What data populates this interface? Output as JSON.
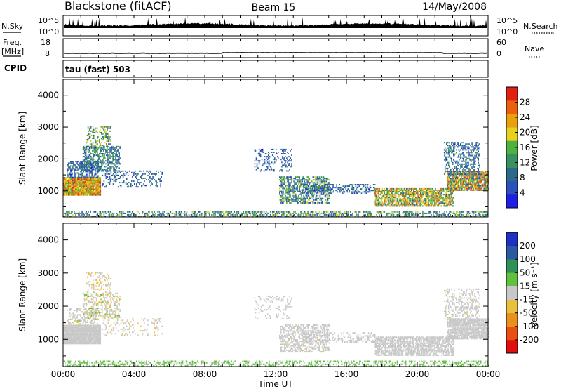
{
  "header": {
    "station": "Blackstone (fitACF)",
    "beam": "Beam 15",
    "date": "14/May/2008"
  },
  "top_panels": {
    "nsky_label": "N.Sky",
    "nsearch_label": "N.Search",
    "noise_ticks": [
      "10^5",
      "10^0"
    ],
    "freq_label_1": "Freq.",
    "freq_label_2": "[MHz]",
    "freq_ticks": [
      "18",
      "8"
    ],
    "nave_label": "Nave",
    "nave_ticks": [
      "60",
      "0"
    ],
    "cpid_label": "CPID",
    "cpid_text": "tau (fast) 503"
  },
  "colors": {
    "power_scale": [
      "#2020e0",
      "#2a52b8",
      "#2c6a88",
      "#3a9060",
      "#50b040",
      "#e8d020",
      "#e8a010",
      "#e86010",
      "#e02010"
    ],
    "velocity_scale": [
      "#e01010",
      "#e85010",
      "#e89020",
      "#e8c040",
      "#c8c8c8",
      "#60c040",
      "#30905a",
      "#2a5aa0",
      "#2030c0"
    ]
  },
  "chart_data": [
    {
      "type": "heatmap",
      "title": "",
      "ylabel": "Slant Range [km]",
      "x_ticks": [
        "00:00",
        "04:00",
        "08:00",
        "12:00",
        "16:00",
        "20:00",
        "00:00"
      ],
      "y_ticks": [
        1000,
        2000,
        3000,
        4000
      ],
      "xlim": [
        0,
        24
      ],
      "ylim": [
        180,
        4500
      ],
      "colorbar": {
        "label": "Power [dB]",
        "ticks": [
          "4",
          "8",
          "12",
          "16",
          "20",
          "24",
          "28"
        ],
        "range": [
          0,
          32
        ]
      },
      "regions": [
        {
          "t0": 0.0,
          "t1": 2.1,
          "r0": 850,
          "r1": 1400,
          "v_lo": 14,
          "v_hi": 30,
          "density": 0.95
        },
        {
          "t0": 0.2,
          "t1": 2.0,
          "r0": 1400,
          "r1": 1900,
          "v_lo": 3,
          "v_hi": 12,
          "density": 0.45
        },
        {
          "t0": 1.1,
          "t1": 3.2,
          "r0": 1600,
          "r1": 2400,
          "v_lo": 3,
          "v_hi": 16,
          "density": 0.45
        },
        {
          "t0": 1.3,
          "t1": 2.7,
          "r0": 2400,
          "r1": 3000,
          "v_lo": 6,
          "v_hi": 22,
          "density": 0.25
        },
        {
          "t0": 2.2,
          "t1": 5.6,
          "r0": 1100,
          "r1": 1600,
          "v_lo": 3,
          "v_hi": 12,
          "density": 0.18
        },
        {
          "t0": 10.8,
          "t1": 12.9,
          "r0": 1600,
          "r1": 2300,
          "v_lo": 3,
          "v_hi": 10,
          "density": 0.18
        },
        {
          "t0": 12.2,
          "t1": 15.0,
          "r0": 600,
          "r1": 1450,
          "v_lo": 3,
          "v_hi": 20,
          "density": 0.45
        },
        {
          "t0": 13.5,
          "t1": 17.6,
          "r0": 900,
          "r1": 1200,
          "v_lo": 3,
          "v_hi": 12,
          "density": 0.3
        },
        {
          "t0": 17.6,
          "t1": 22.0,
          "r0": 500,
          "r1": 1050,
          "v_lo": 8,
          "v_hi": 28,
          "density": 0.6
        },
        {
          "t0": 21.7,
          "t1": 24.0,
          "r0": 1000,
          "r1": 1600,
          "v_lo": 6,
          "v_hi": 30,
          "density": 0.75
        },
        {
          "t0": 21.5,
          "t1": 23.5,
          "r0": 1500,
          "r1": 2500,
          "v_lo": 3,
          "v_hi": 14,
          "density": 0.3
        },
        {
          "t0": 0.0,
          "t1": 24.0,
          "r0": 180,
          "r1": 320,
          "v_lo": 4,
          "v_hi": 20,
          "density": 0.35
        }
      ]
    },
    {
      "type": "heatmap",
      "title": "",
      "ylabel": "Slant Range [km]",
      "x_ticks": [
        "00:00",
        "04:00",
        "08:00",
        "12:00",
        "16:00",
        "20:00",
        "00:00"
      ],
      "y_ticks": [
        1000,
        2000,
        3000,
        4000
      ],
      "xlim": [
        0,
        24
      ],
      "ylim": [
        180,
        4500
      ],
      "xlabel": "Time UT",
      "colorbar": {
        "label": "Velocity [m s⁻¹]",
        "ticks": [
          "-200",
          "-100",
          "-50",
          "-15",
          "15",
          "50",
          "100",
          "200"
        ],
        "range": [
          -250,
          250
        ]
      },
      "regions": [
        {
          "t0": 0.0,
          "t1": 2.1,
          "r0": 850,
          "r1": 1400,
          "v_lo": -12,
          "v_hi": 12,
          "density": 0.95
        },
        {
          "t0": 0.2,
          "t1": 2.0,
          "r0": 1400,
          "r1": 1900,
          "v_lo": -40,
          "v_hi": 30,
          "density": 0.3
        },
        {
          "t0": 1.1,
          "t1": 3.2,
          "r0": 1600,
          "r1": 2400,
          "v_lo": -60,
          "v_hi": 40,
          "density": 0.3
        },
        {
          "t0": 1.3,
          "t1": 2.7,
          "r0": 2400,
          "r1": 3000,
          "v_lo": -80,
          "v_hi": 30,
          "density": 0.2
        },
        {
          "t0": 2.2,
          "t1": 5.6,
          "r0": 1100,
          "r1": 1600,
          "v_lo": -40,
          "v_hi": 20,
          "density": 0.12
        },
        {
          "t0": 10.8,
          "t1": 12.9,
          "r0": 1600,
          "r1": 2300,
          "v_lo": -20,
          "v_hi": 20,
          "density": 0.12
        },
        {
          "t0": 12.2,
          "t1": 15.0,
          "r0": 600,
          "r1": 1450,
          "v_lo": -30,
          "v_hi": 20,
          "density": 0.4
        },
        {
          "t0": 13.5,
          "t1": 17.6,
          "r0": 900,
          "r1": 1200,
          "v_lo": -20,
          "v_hi": 12,
          "density": 0.25
        },
        {
          "t0": 17.6,
          "t1": 22.0,
          "r0": 500,
          "r1": 1050,
          "v_lo": -14,
          "v_hi": 14,
          "density": 0.6
        },
        {
          "t0": 21.7,
          "t1": 24.0,
          "r0": 1000,
          "r1": 1600,
          "v_lo": -14,
          "v_hi": 14,
          "density": 0.75
        },
        {
          "t0": 21.5,
          "t1": 23.5,
          "r0": 1500,
          "r1": 2500,
          "v_lo": -30,
          "v_hi": 20,
          "density": 0.25
        },
        {
          "t0": 0.0,
          "t1": 24.0,
          "r0": 180,
          "r1": 320,
          "v_lo": 16,
          "v_hi": 60,
          "density": 0.3
        }
      ]
    }
  ]
}
